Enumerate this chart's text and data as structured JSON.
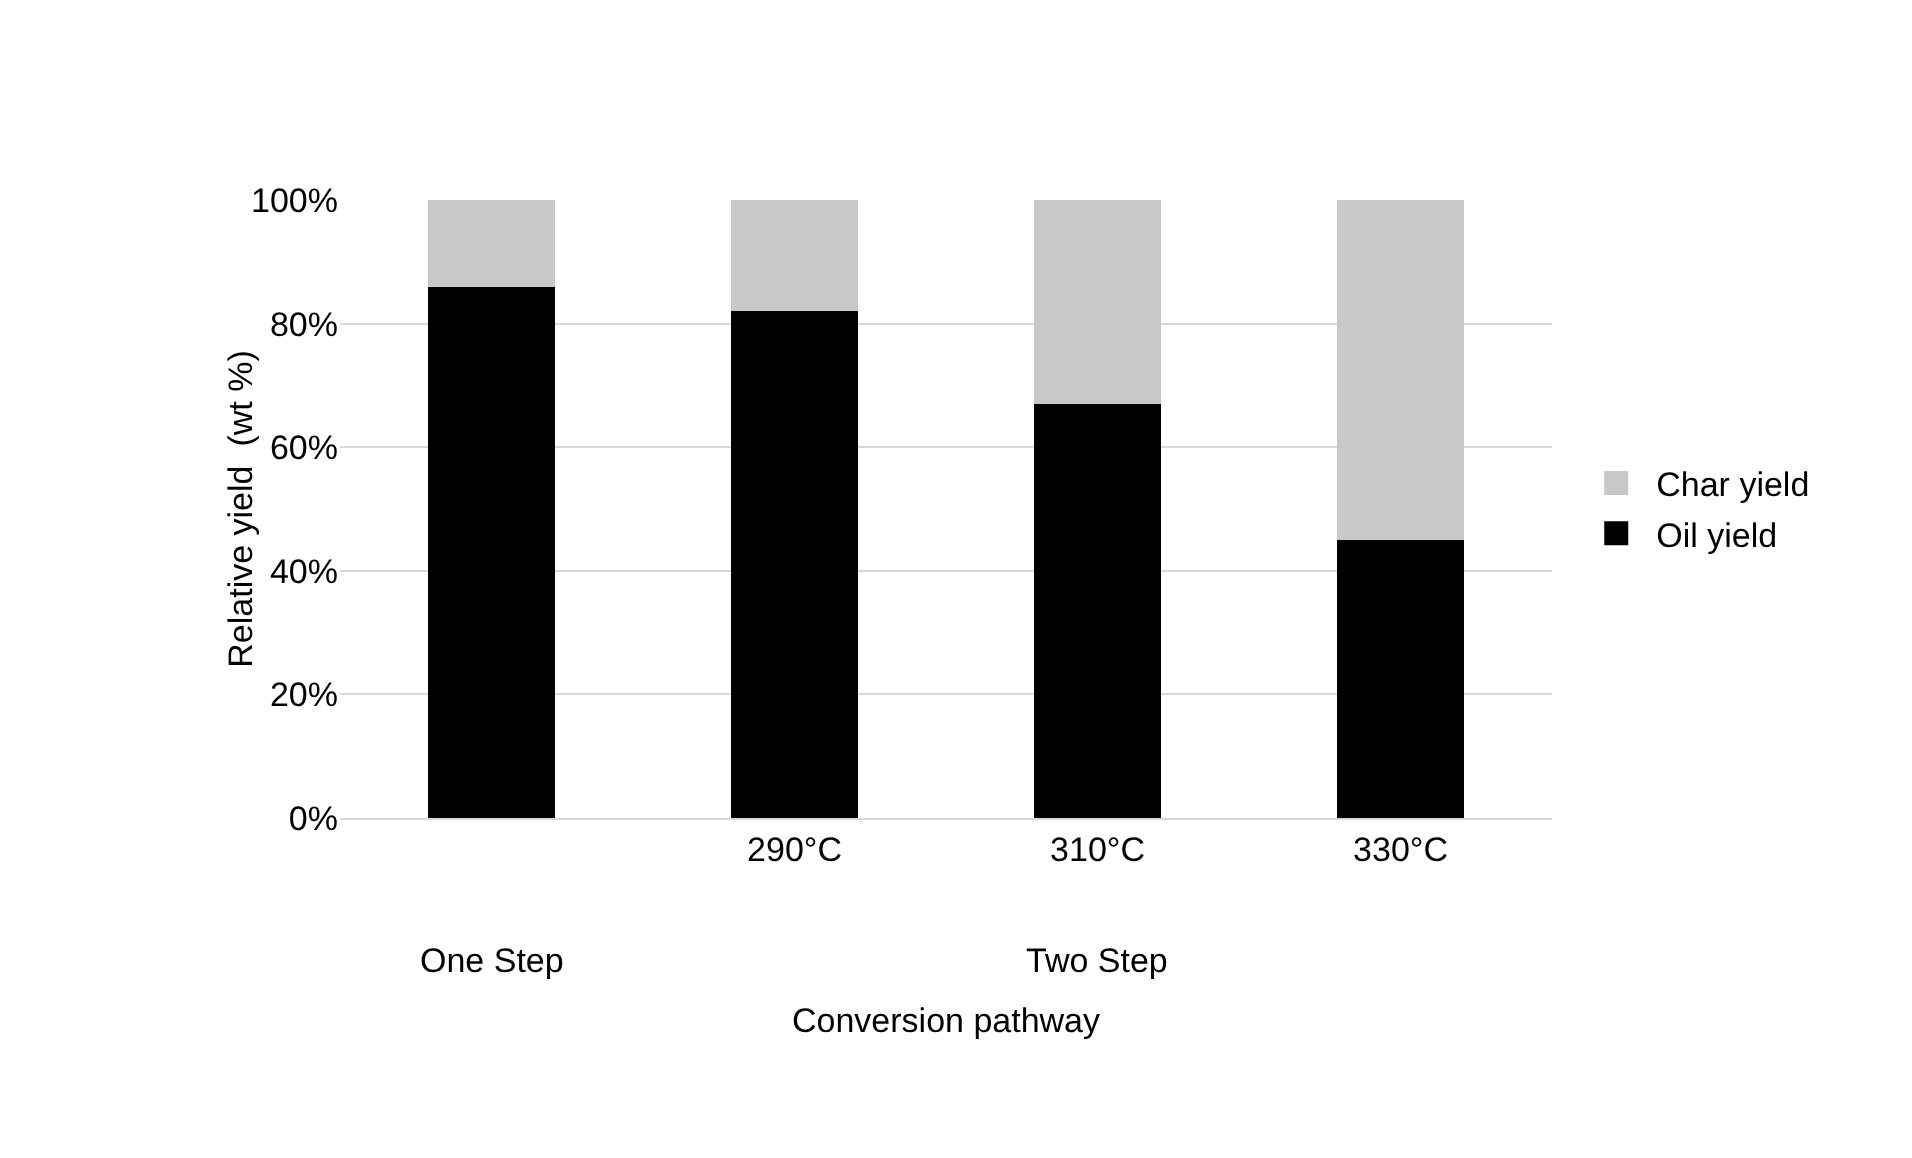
{
  "chart_data": {
    "type": "bar",
    "stacked": true,
    "xlabel": "Conversion pathway",
    "ylabel": "Relative yield  (wt %)",
    "categories": [
      null,
      "290°C",
      "310°C",
      "330°C"
    ],
    "series": [
      {
        "name": "Oil yield",
        "color": "#000000",
        "values": [
          86,
          82,
          67,
          45
        ]
      },
      {
        "name": "Char yield",
        "color": "#c8c8c8",
        "values": [
          14,
          18,
          33,
          55
        ]
      }
    ],
    "ylim": [
      0,
      100
    ],
    "yticks": [
      {
        "value": 0,
        "label": "0%"
      },
      {
        "value": 20,
        "label": "20%"
      },
      {
        "value": 40,
        "label": "40%"
      },
      {
        "value": 60,
        "label": "60%"
      },
      {
        "value": 80,
        "label": "80%"
      },
      {
        "value": 100,
        "label": "100%"
      }
    ],
    "grid": "y",
    "legend": "right",
    "annotations": [
      "One Step",
      "Two Step"
    ]
  }
}
